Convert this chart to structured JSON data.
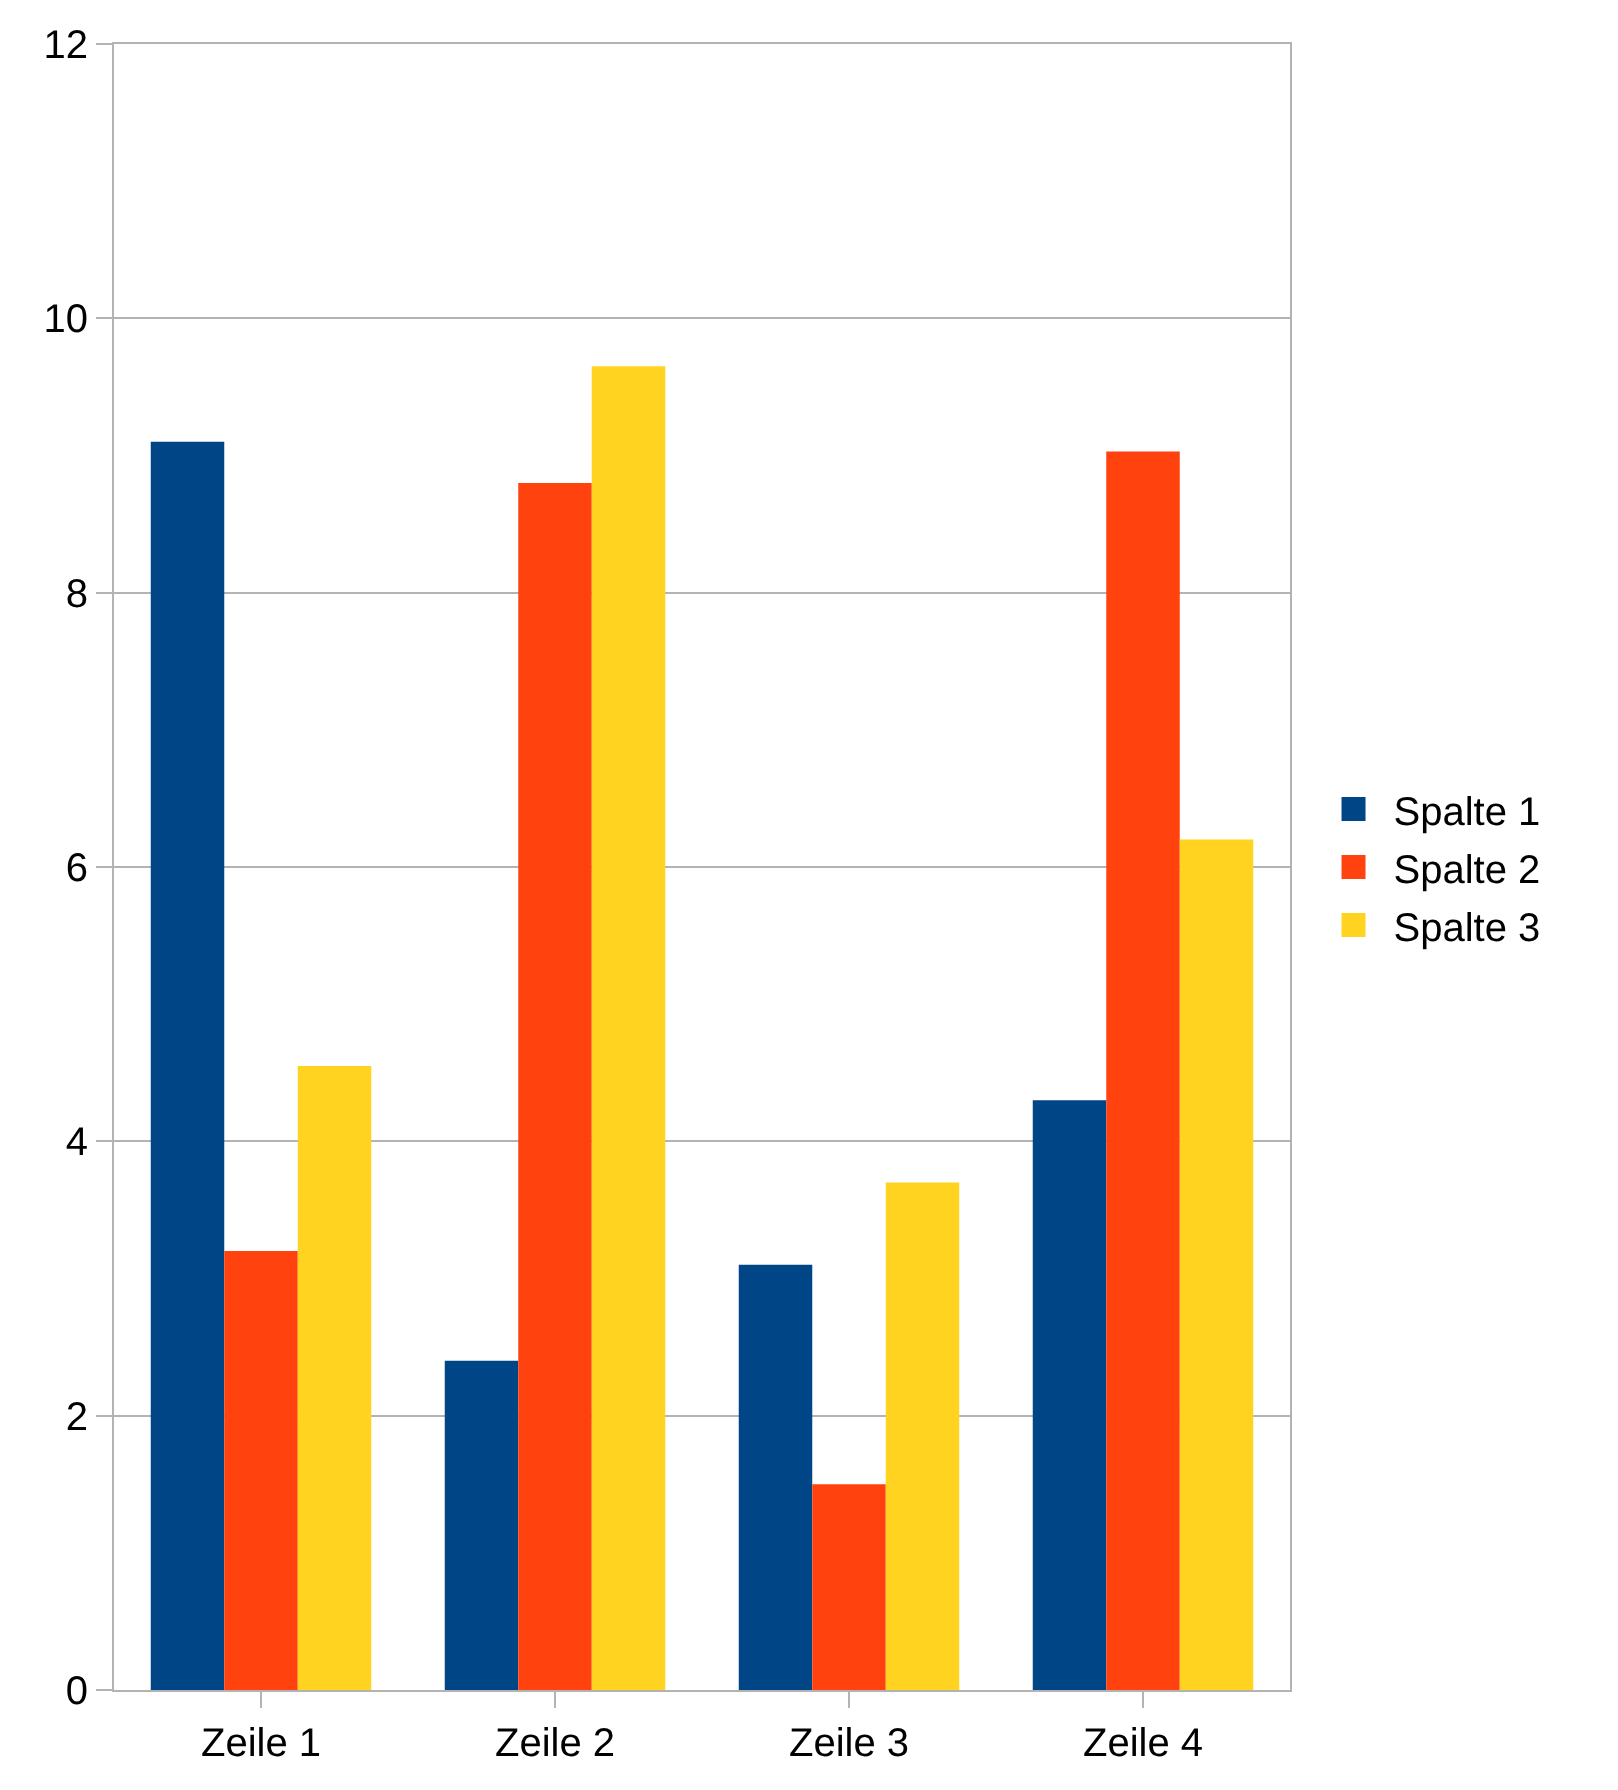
{
  "chart_data": {
    "type": "bar",
    "categories": [
      "Zeile 1",
      "Zeile 2",
      "Zeile 3",
      "Zeile 4"
    ],
    "series": [
      {
        "name": "Spalte 1",
        "color": "#004586",
        "values": [
          9.1,
          2.4,
          3.1,
          4.3
        ]
      },
      {
        "name": "Spalte 2",
        "color": "#ff420e",
        "values": [
          3.2,
          8.8,
          1.5,
          9.03
        ]
      },
      {
        "name": "Spalte 3",
        "color": "#ffd320",
        "values": [
          4.55,
          9.65,
          3.7,
          6.2
        ]
      }
    ],
    "ylim": [
      0,
      12
    ],
    "yticks": [
      0,
      2,
      4,
      6,
      8,
      10,
      12
    ],
    "grid": "y",
    "legend": "right"
  }
}
